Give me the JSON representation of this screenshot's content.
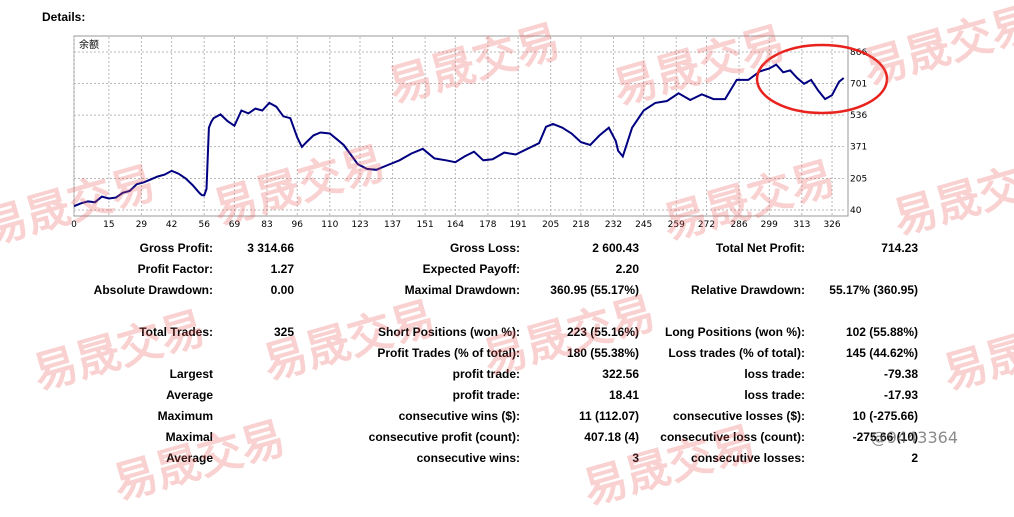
{
  "page": {
    "heading": "Details:"
  },
  "chart_data": {
    "type": "line",
    "title": "余额",
    "x_ticks": [
      0,
      15,
      29,
      42,
      56,
      69,
      83,
      96,
      110,
      123,
      137,
      151,
      164,
      178,
      191,
      205,
      218,
      232,
      245,
      259,
      272,
      286,
      299,
      313,
      326
    ],
    "y_ticks": [
      40,
      205,
      371,
      536,
      701,
      866
    ],
    "xlim": [
      0,
      332
    ],
    "ylim": [
      0,
      900
    ],
    "grid": true,
    "series": [
      {
        "color": "#000080",
        "x": [
          0,
          3,
          6,
          9,
          12,
          15,
          18,
          21,
          24,
          27,
          30,
          33,
          36,
          39,
          42,
          45,
          48,
          51,
          54,
          55,
          56,
          57,
          58,
          59,
          60,
          63,
          66,
          69,
          72,
          75,
          78,
          81,
          84,
          87,
          90,
          93,
          96,
          98,
          100,
          103,
          106,
          110,
          113,
          116,
          119,
          122,
          126,
          130,
          135,
          140,
          145,
          150,
          155,
          160,
          164,
          168,
          172,
          176,
          180,
          185,
          190,
          195,
          200,
          203,
          206,
          210,
          214,
          218,
          222,
          226,
          230,
          233,
          234,
          236,
          240,
          245,
          250,
          255,
          260,
          265,
          270,
          275,
          280,
          285,
          290,
          295,
          299,
          302,
          305,
          308,
          311,
          314,
          317,
          320,
          323,
          326,
          329,
          331
        ],
        "y": [
          60,
          75,
          85,
          80,
          110,
          100,
          105,
          130,
          140,
          175,
          185,
          200,
          215,
          225,
          245,
          230,
          205,
          170,
          128,
          118,
          117,
          150,
          470,
          500,
          520,
          540,
          505,
          480,
          560,
          545,
          570,
          560,
          600,
          580,
          530,
          520,
          420,
          370,
          395,
          430,
          445,
          440,
          410,
          380,
          330,
          280,
          255,
          250,
          275,
          300,
          335,
          360,
          310,
          300,
          290,
          320,
          345,
          300,
          305,
          340,
          330,
          360,
          390,
          475,
          490,
          470,
          440,
          395,
          380,
          430,
          470,
          400,
          350,
          320,
          470,
          560,
          600,
          610,
          650,
          615,
          645,
          620,
          620,
          720,
          720,
          765,
          780,
          800,
          760,
          770,
          730,
          700,
          720,
          665,
          620,
          640,
          710,
          730
        ]
      }
    ]
  },
  "stats": {
    "r1": {
      "gross_profit_label": "Gross Profit:",
      "gross_profit": "3 314.66",
      "gross_loss_label": "Gross Loss:",
      "gross_loss": "2 600.43",
      "net_profit_label": "Total Net Profit:",
      "net_profit": "714.23"
    },
    "r2": {
      "profit_factor_label": "Profit Factor:",
      "profit_factor": "1.27",
      "expected_payoff_label": "Expected Payoff:",
      "expected_payoff": "2.20"
    },
    "r3": {
      "abs_dd_label": "Absolute Drawdown:",
      "abs_dd": "0.00",
      "max_dd_label": "Maximal Drawdown:",
      "max_dd": "360.95 (55.17%)",
      "rel_dd_label": "Relative Drawdown:",
      "rel_dd": "55.17% (360.95)"
    },
    "r4": {
      "total_trades_label": "Total Trades:",
      "total_trades": "325",
      "short_label": "Short Positions (won %):",
      "short": "223 (55.16%)",
      "long_label": "Long Positions (won %):",
      "long": "102 (55.88%)"
    },
    "r5": {
      "profit_trades_label": "Profit Trades (% of total):",
      "profit_trades": "180 (55.38%)",
      "loss_trades_label": "Loss trades (% of total):",
      "loss_trades": "145 (44.62%)"
    },
    "r6": {
      "left_label": "Largest",
      "mid_label": "profit trade:",
      "mid": "322.56",
      "right_label": "loss trade:",
      "right": "-79.38"
    },
    "r7": {
      "left_label": "Average",
      "mid_label": "profit trade:",
      "mid": "18.41",
      "right_label": "loss trade:",
      "right": "-17.93"
    },
    "r8": {
      "left_label": "Maximum",
      "mid_label": "consecutive wins ($):",
      "mid": "11 (112.07)",
      "right_label": "consecutive losses ($):",
      "right": "10 (-275.66)"
    },
    "r9": {
      "left_label": "Maximal",
      "mid_label": "consecutive profit (count):",
      "mid": "407.18 (4)",
      "right_label": "consecutive loss (count):",
      "right": "-275.66 (10)"
    },
    "r10": {
      "left_label": "Average",
      "mid_label": "consecutive wins:",
      "mid": "3",
      "right_label": "consecutive losses:",
      "right": "2"
    }
  },
  "overlay": {
    "watermark_text": "易晟交易",
    "corner_text": "@9443364",
    "highlight_color": "#e8231e"
  }
}
